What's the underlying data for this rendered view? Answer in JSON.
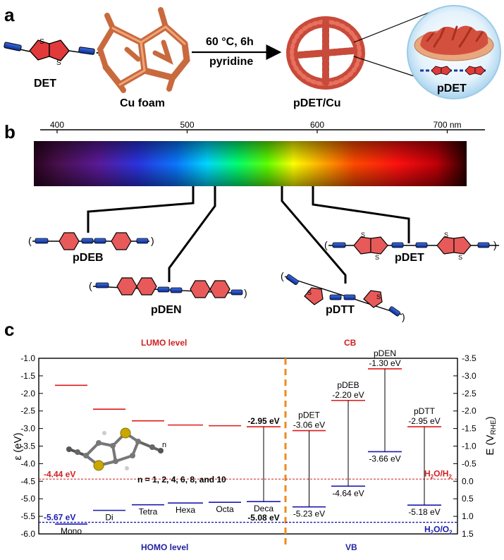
{
  "panel_a": {
    "label": "a",
    "monomer": "DET",
    "plus": "+",
    "substrate": "Cu foam",
    "cond1": "60 °C, 6h",
    "cond2": "pyridine",
    "product": "pDET/Cu",
    "zoom_label": "pDET",
    "atom_s": "S"
  },
  "panel_b": {
    "label": "b",
    "ticks": [
      {
        "nm": 400,
        "label": "400"
      },
      {
        "nm": 500,
        "label": "500"
      },
      {
        "nm": 600,
        "label": "600"
      },
      {
        "nm": 700,
        "label": "700 nm"
      }
    ],
    "polymers": [
      "pDEB",
      "pDEN",
      "pDTT",
      "pDET"
    ]
  },
  "panel_c": {
    "label": "c",
    "lumo_title": "LUMO level",
    "homo_title": "HOMO level",
    "cb_title": "CB",
    "vb_title": "VB",
    "y_left_label": "ε (eV)",
    "y_right_label_main": "E (V",
    "y_right_label_sub": "RHE",
    "y_right_label_close": ")",
    "left_ticks": [
      "-1.0",
      "-1.5",
      "-2.0",
      "-2.5",
      "-3.0",
      "-3.5",
      "-4.0",
      "-4.5",
      "-5.0",
      "-5.5",
      "-6.0"
    ],
    "right_ticks": [
      "-3.5",
      "-3.0",
      "-2.5",
      "-2.0",
      "-1.5",
      "-1.0",
      "-0.5",
      "0.0",
      "0.5",
      "1.0",
      "1.5"
    ],
    "h2_value": "-4.44 eV",
    "o2_value": "-5.67 eV",
    "h2_label": "H",
    "h2_sub1": "2",
    "h2_mid": "O/H",
    "h2_sub2": "2",
    "o2_label": "H",
    "o2_sub1": "2",
    "o2_mid": "O/O",
    "o2_sub2": "2",
    "molecule_caption": "n = 1, 2, 4, 6, 8, and 10",
    "molecule_subscript": "n",
    "oligomers": [
      "Mono",
      "Di",
      "Tetra",
      "Hexa",
      "Octa",
      "Deca"
    ],
    "deca_lumo": "-2.95 eV",
    "deca_homo": "-5.08 eV",
    "polymer_levels": [
      {
        "name": "pDET",
        "lumo": "-3.06 eV",
        "homo": "-5.23 eV"
      },
      {
        "name": "pDEB",
        "lumo": "-2.20 eV",
        "homo": "-4.64 eV"
      },
      {
        "name": "pDEN",
        "lumo": "-1.30 eV",
        "homo": "-3.66 eV"
      },
      {
        "name": "pDTT",
        "lumo": "-2.95 eV",
        "homo": "-5.18 eV"
      }
    ]
  },
  "chart_data": {
    "type": "energy-level diagram",
    "y_left": {
      "label": "ε (eV)",
      "range": [
        -6.0,
        -1.0
      ]
    },
    "y_right": {
      "label": "E (V RHE)",
      "range": [
        1.5,
        -3.5
      ]
    },
    "oligomer_series": {
      "names": [
        "Mono",
        "Di",
        "Tetra",
        "Hexa",
        "Octa",
        "Deca"
      ],
      "lumo_eV": [
        -1.77,
        -2.45,
        -2.78,
        -2.9,
        -2.92,
        -2.95
      ],
      "homo_eV": [
        -5.72,
        -5.33,
        -5.17,
        -5.12,
        -5.1,
        -5.08
      ]
    },
    "polymer_series": {
      "names": [
        "pDET",
        "pDEB",
        "pDEN",
        "pDTT"
      ],
      "lumo_eV": [
        -3.06,
        -2.2,
        -1.3,
        -2.95
      ],
      "homo_eV": [
        -5.23,
        -4.64,
        -3.66,
        -5.18
      ]
    },
    "references": [
      {
        "name": "H2O/H2",
        "eV": -4.44,
        "V_RHE": 0.0
      },
      {
        "name": "H2O/O2",
        "eV": -5.67,
        "V_RHE": 1.23
      }
    ]
  }
}
